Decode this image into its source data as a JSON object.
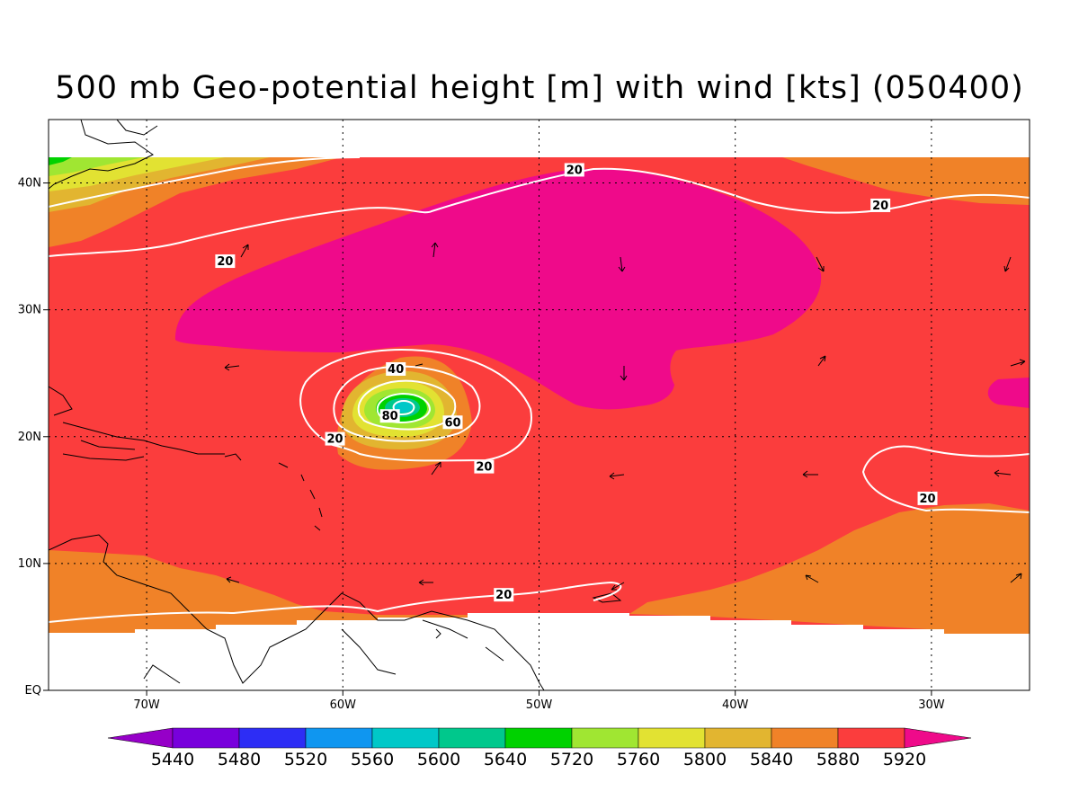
{
  "title": "500 mb Geo-potential height [m] with wind [kts] (050400)",
  "map": {
    "lon_range": [
      -75,
      -25
    ],
    "lat_range": [
      0,
      45
    ],
    "lon_ticks": [
      {
        "lon": -70,
        "label": "70W"
      },
      {
        "lon": -60,
        "label": "60W"
      },
      {
        "lon": -50,
        "label": "50W"
      },
      {
        "lon": -40,
        "label": "40W"
      },
      {
        "lon": -30,
        "label": "30W"
      }
    ],
    "lat_ticks": [
      {
        "lat": 0,
        "label": "EQ"
      },
      {
        "lat": 10,
        "label": "10N"
      },
      {
        "lat": 20,
        "label": "20N"
      },
      {
        "lat": 30,
        "label": "30N"
      },
      {
        "lat": 40,
        "label": "40N"
      }
    ],
    "grid": "dotted",
    "colors": {
      "5920_plus": "#ef0a8a",
      "5880": "#fb3d3d",
      "5840": "#f08228",
      "5800": "#e2b530",
      "5760": "#e2e232",
      "5720": "#a0e632",
      "5640": "#00d200",
      "5600": "#00c88c",
      "5560": "#00c8c8"
    },
    "wind_contour_labels": [
      {
        "text": "20",
        "lon": -48.2,
        "lat": 41.0
      },
      {
        "text": "20",
        "lon": -32.6,
        "lat": 38.2
      },
      {
        "text": "20",
        "lon": -66.0,
        "lat": 33.8
      },
      {
        "text": "40",
        "lon": -57.3,
        "lat": 25.3
      },
      {
        "text": "80",
        "lon": -57.6,
        "lat": 21.6
      },
      {
        "text": "60",
        "lon": -54.4,
        "lat": 21.1
      },
      {
        "text": "20",
        "lon": -60.4,
        "lat": 19.8
      },
      {
        "text": "20",
        "lon": -52.8,
        "lat": 17.6
      },
      {
        "text": "20",
        "lon": -30.2,
        "lat": 15.1
      },
      {
        "text": "20",
        "lon": -51.8,
        "lat": 7.5
      }
    ]
  },
  "colorbar": {
    "labels": [
      "5440",
      "5480",
      "5520",
      "5560",
      "5600",
      "5640",
      "5720",
      "5760",
      "5800",
      "5840",
      "5880",
      "5920"
    ],
    "colors": [
      "#9600c8",
      "#7800dc",
      "#2d2df5",
      "#0f96f0",
      "#00c8c8",
      "#00c88c",
      "#00d200",
      "#a0e632",
      "#e2e232",
      "#e2b530",
      "#f08228",
      "#fb3d3d",
      "#ef0a8a"
    ],
    "left_arrow_color": "#9600c8",
    "right_arrow_color": "#ef0a8a"
  }
}
